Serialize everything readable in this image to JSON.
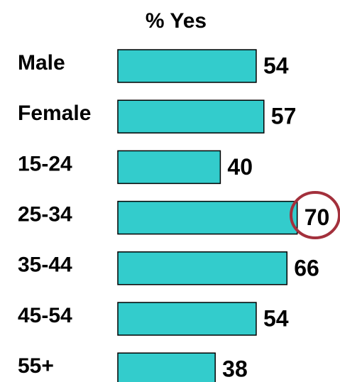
{
  "chart_data": {
    "type": "bar",
    "orientation": "horizontal",
    "title": "% Yes",
    "categories": [
      "Male",
      "Female",
      "15-24",
      "25-34",
      "35-44",
      "45-54",
      "55+"
    ],
    "values": [
      54,
      57,
      40,
      70,
      66,
      54,
      38
    ],
    "color": "#33cccc"
  }
}
